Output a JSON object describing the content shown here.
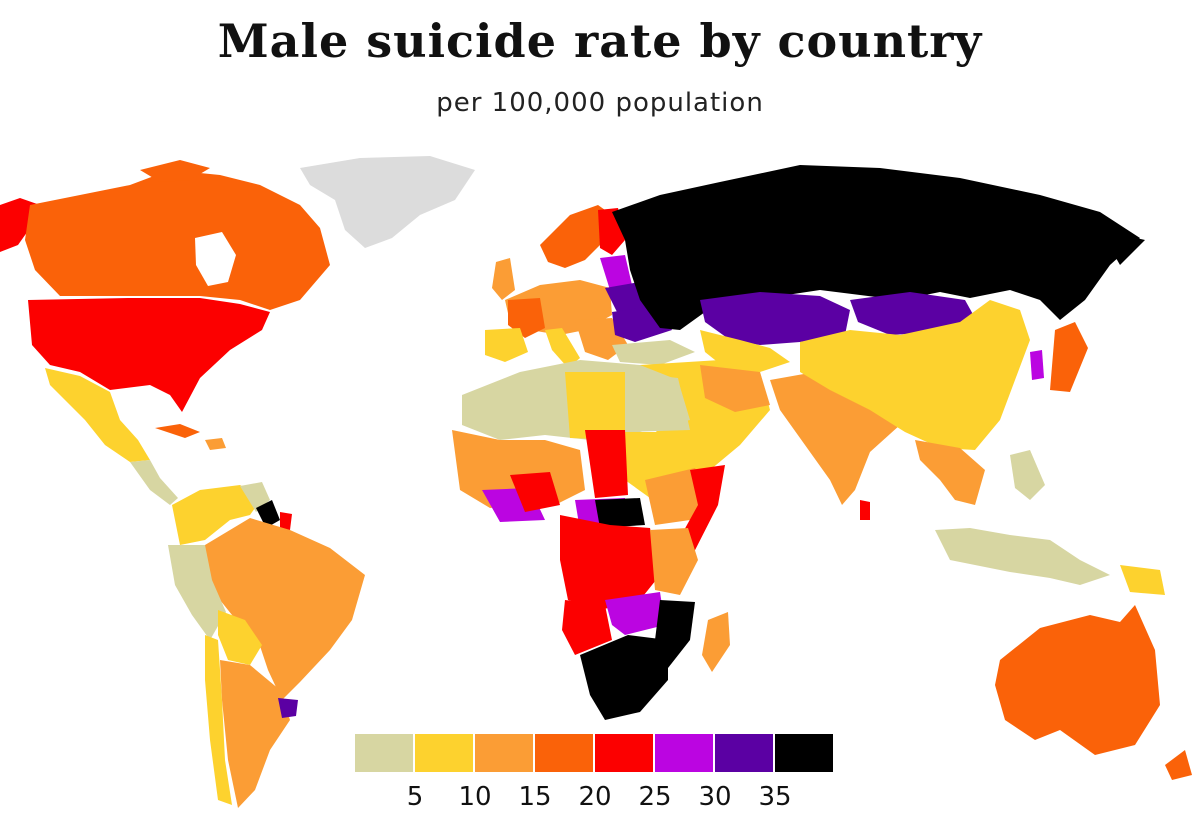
{
  "header": {
    "title": "Male suicide rate by country",
    "subtitle": "per 100,000 population"
  },
  "legend": {
    "bins": [
      {
        "color": "#d7d6a2"
      },
      {
        "color": "#fdd22e"
      },
      {
        "color": "#fb9d35"
      },
      {
        "color": "#fa6209"
      },
      {
        "color": "#fc0000"
      },
      {
        "color": "#bb05e1"
      },
      {
        "color": "#5b00a3"
      },
      {
        "color": "#000000"
      }
    ],
    "ticks": [
      "5",
      "10",
      "15",
      "20",
      "25",
      "30",
      "35"
    ]
  },
  "colors": {
    "no_data": "#dcdcdc",
    "background": "#ffffff"
  }
}
